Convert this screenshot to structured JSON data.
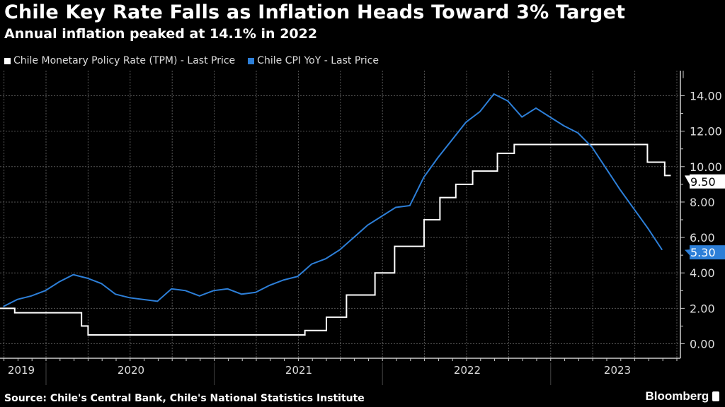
{
  "title": "Chile Key Rate Falls as Inflation Heads Toward 3% Target",
  "subtitle": "Annual inflation peaked at 14.1% in 2022",
  "source": "Source: Chile's Central Bank, Chile's National Statistics Institute",
  "brand": "Bloomberg",
  "colors": {
    "background": "#000000",
    "tpm": "#ffffff",
    "cpi": "#2d7fd8",
    "grid": "#555555"
  },
  "chart_data": {
    "type": "line",
    "title": "Chile Key Rate Falls as Inflation Heads Toward 3% Target",
    "subtitle": "Annual inflation peaked at 14.1% in 2022",
    "ylim": [
      -1,
      15.5
    ],
    "yticks": [
      "0.00",
      "2.00",
      "4.00",
      "6.00",
      "8.00",
      "10.00",
      "12.00",
      "14.00"
    ],
    "ytick_values": [
      0,
      2,
      4,
      6,
      8,
      10,
      12,
      14
    ],
    "y_axis_side": "right",
    "xlim": [
      "2019-08-28",
      "2023-10-20"
    ],
    "xtick_labels": [
      "2019",
      "2020",
      "2021",
      "2022",
      "2023"
    ],
    "grid": true,
    "legend_placement": "top-left",
    "series": [
      {
        "name": "Chile Monetary Policy Rate (TPM) - Last Price",
        "style": "step",
        "last_label": "9.50",
        "points": [
          [
            "2019-08-28",
            2.0
          ],
          [
            "2019-10-24",
            1.75
          ],
          [
            "2020-03-17",
            1.0
          ],
          [
            "2020-04-01",
            0.5
          ],
          [
            "2021-07-15",
            0.75
          ],
          [
            "2021-09-01",
            1.5
          ],
          [
            "2021-10-14",
            2.75
          ],
          [
            "2021-12-15",
            4.0
          ],
          [
            "2022-01-27",
            5.5
          ],
          [
            "2022-03-30",
            7.0
          ],
          [
            "2022-05-04",
            8.25
          ],
          [
            "2022-06-08",
            9.0
          ],
          [
            "2022-07-14",
            9.75
          ],
          [
            "2022-09-07",
            10.75
          ],
          [
            "2022-10-13",
            11.25
          ],
          [
            "2023-07-28",
            10.25
          ],
          [
            "2023-09-05",
            9.5
          ],
          [
            "2023-09-18",
            9.5
          ]
        ]
      },
      {
        "name": "Chile CPI YoY - Last Price",
        "style": "line",
        "last_label": "5.30",
        "months": [
          "2019-09",
          "2019-10",
          "2019-11",
          "2019-12",
          "2020-01",
          "2020-02",
          "2020-03",
          "2020-04",
          "2020-05",
          "2020-06",
          "2020-07",
          "2020-08",
          "2020-09",
          "2020-10",
          "2020-11",
          "2020-12",
          "2021-01",
          "2021-02",
          "2021-03",
          "2021-04",
          "2021-05",
          "2021-06",
          "2021-07",
          "2021-08",
          "2021-09",
          "2021-10",
          "2021-11",
          "2021-12",
          "2022-01",
          "2022-02",
          "2022-03",
          "2022-04",
          "2022-05",
          "2022-06",
          "2022-07",
          "2022-08",
          "2022-09",
          "2022-10",
          "2022-11",
          "2022-12",
          "2023-01",
          "2023-02",
          "2023-03",
          "2023-04",
          "2023-05",
          "2023-06",
          "2023-07",
          "2023-08"
        ],
        "values": [
          2.1,
          2.5,
          2.7,
          3.0,
          3.5,
          3.9,
          3.7,
          3.4,
          2.8,
          2.6,
          2.5,
          2.4,
          3.1,
          3.0,
          2.7,
          3.0,
          3.1,
          2.8,
          2.9,
          3.3,
          3.6,
          3.8,
          4.5,
          4.8,
          5.3,
          6.0,
          6.7,
          7.2,
          7.7,
          7.8,
          9.4,
          10.5,
          11.5,
          12.5,
          13.1,
          14.1,
          13.7,
          12.8,
          13.3,
          12.8,
          12.3,
          11.9,
          11.1,
          9.9,
          8.7,
          7.6,
          6.5,
          5.3
        ]
      }
    ]
  }
}
